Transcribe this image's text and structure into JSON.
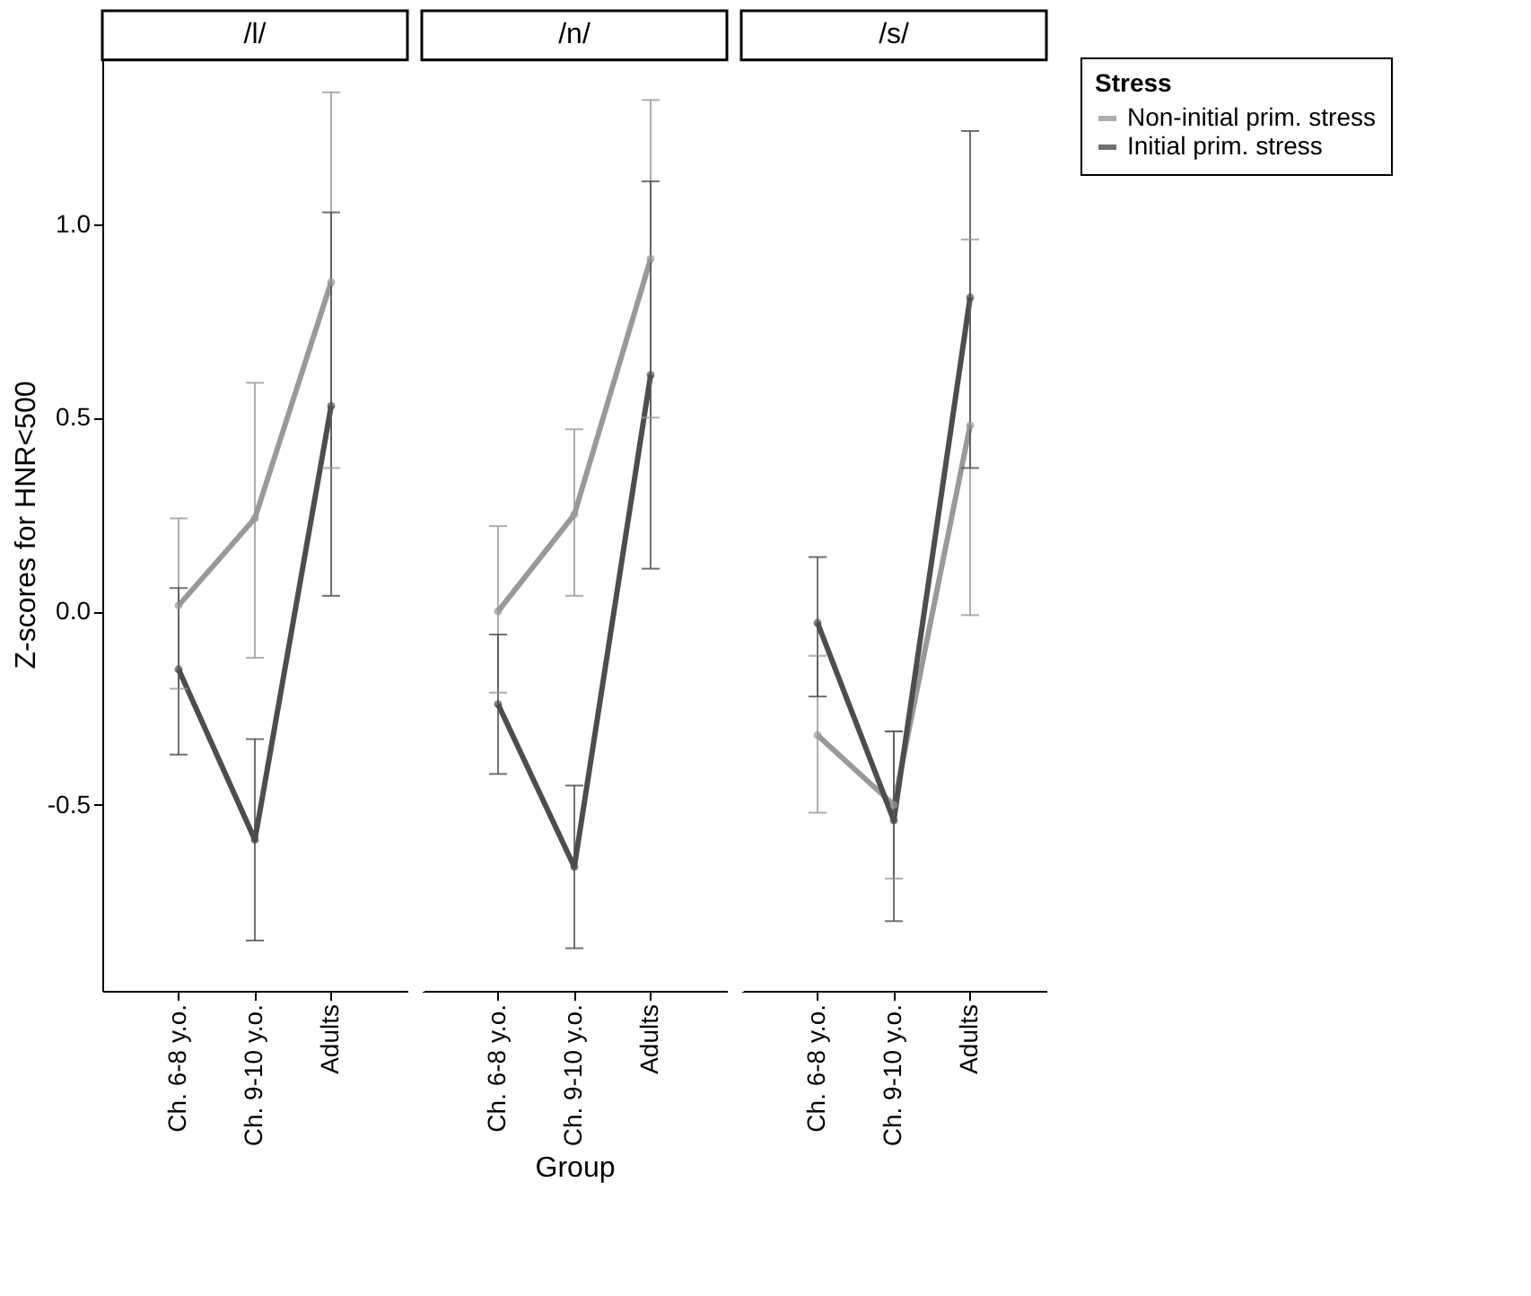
{
  "chart_data": [
    {
      "type": "line",
      "title": "/l/",
      "legend_title": "Stress",
      "ylabel": "Z-scores for HNR<500",
      "categories": [
        "Ch. 6-8 y.o.",
        "Ch. 9-10 y.o.",
        "Adults"
      ],
      "ylim": [
        -0.98,
        1.43
      ],
      "yticks": [
        -0.5,
        {
          "value": 0,
          "label": "0.0"
        },
        0.5,
        {
          "value": 1,
          "label": "1.0"
        }
      ],
      "grid": false,
      "marker": "circle",
      "line_style": "solid",
      "legend": "right",
      "series": [
        {
          "name": "Non-initial prim. stress",
          "color": "#999999",
          "values": [
            0.015,
            0.24,
            0.85
          ],
          "errors": [
            [
              -0.2,
              0.24
            ],
            [
              -0.12,
              0.59
            ],
            [
              0.37,
              1.34
            ]
          ]
        },
        {
          "name": "Initial prim. stress",
          "color": "#4d4d4d",
          "values": [
            -0.15,
            -0.59,
            0.53
          ],
          "errors": [
            [
              -0.37,
              0.06
            ],
            [
              -0.85,
              -0.33
            ],
            [
              0.04,
              1.03
            ]
          ]
        }
      ]
    },
    {
      "type": "line",
      "title": "/n/",
      "xlabel": "Group",
      "categories": [
        "Ch. 6-8 y.o.",
        "Ch. 9-10 y.o.",
        "Adults"
      ],
      "ylim": [
        -0.98,
        1.43
      ],
      "tick_labels": "x",
      "grid": false,
      "marker": "circle",
      "line_style": "solid",
      "legend": "right",
      "series": [
        {
          "name": "Non-initial prim. stress",
          "color": "#999999",
          "values": [
            0.0,
            0.25,
            0.91
          ],
          "errors": [
            [
              -0.21,
              0.22
            ],
            [
              0.04,
              0.47
            ],
            [
              0.5,
              1.32
            ]
          ]
        },
        {
          "name": "Initial prim. stress",
          "color": "#4d4d4d",
          "values": [
            -0.24,
            -0.66,
            0.61
          ],
          "errors": [
            [
              -0.42,
              -0.06
            ],
            [
              -0.87,
              -0.45
            ],
            [
              0.11,
              1.11
            ]
          ]
        }
      ]
    },
    {
      "type": "line",
      "title": "/s/",
      "categories": [
        "Ch. 6-8 y.o.",
        "Ch. 9-10 y.o.",
        "Adults"
      ],
      "ylim": [
        -0.98,
        1.43
      ],
      "tick_labels": "x",
      "grid": false,
      "marker": "circle",
      "line_style": "solid",
      "legend": "right",
      "series": [
        {
          "name": "Non-initial prim. stress",
          "color": "#999999",
          "values": [
            -0.32,
            -0.5,
            0.48
          ],
          "errors": [
            [
              -0.52,
              -0.115
            ],
            [
              -0.69,
              -0.31
            ],
            [
              -0.01,
              0.96
            ]
          ]
        },
        {
          "name": "Initial prim. stress",
          "color": "#4d4d4d",
          "values": [
            -0.03,
            -0.54,
            0.81
          ],
          "errors": [
            [
              -0.22,
              0.14
            ],
            [
              -0.8,
              -0.31
            ],
            [
              0.37,
              1.24
            ]
          ]
        }
      ]
    }
  ]
}
